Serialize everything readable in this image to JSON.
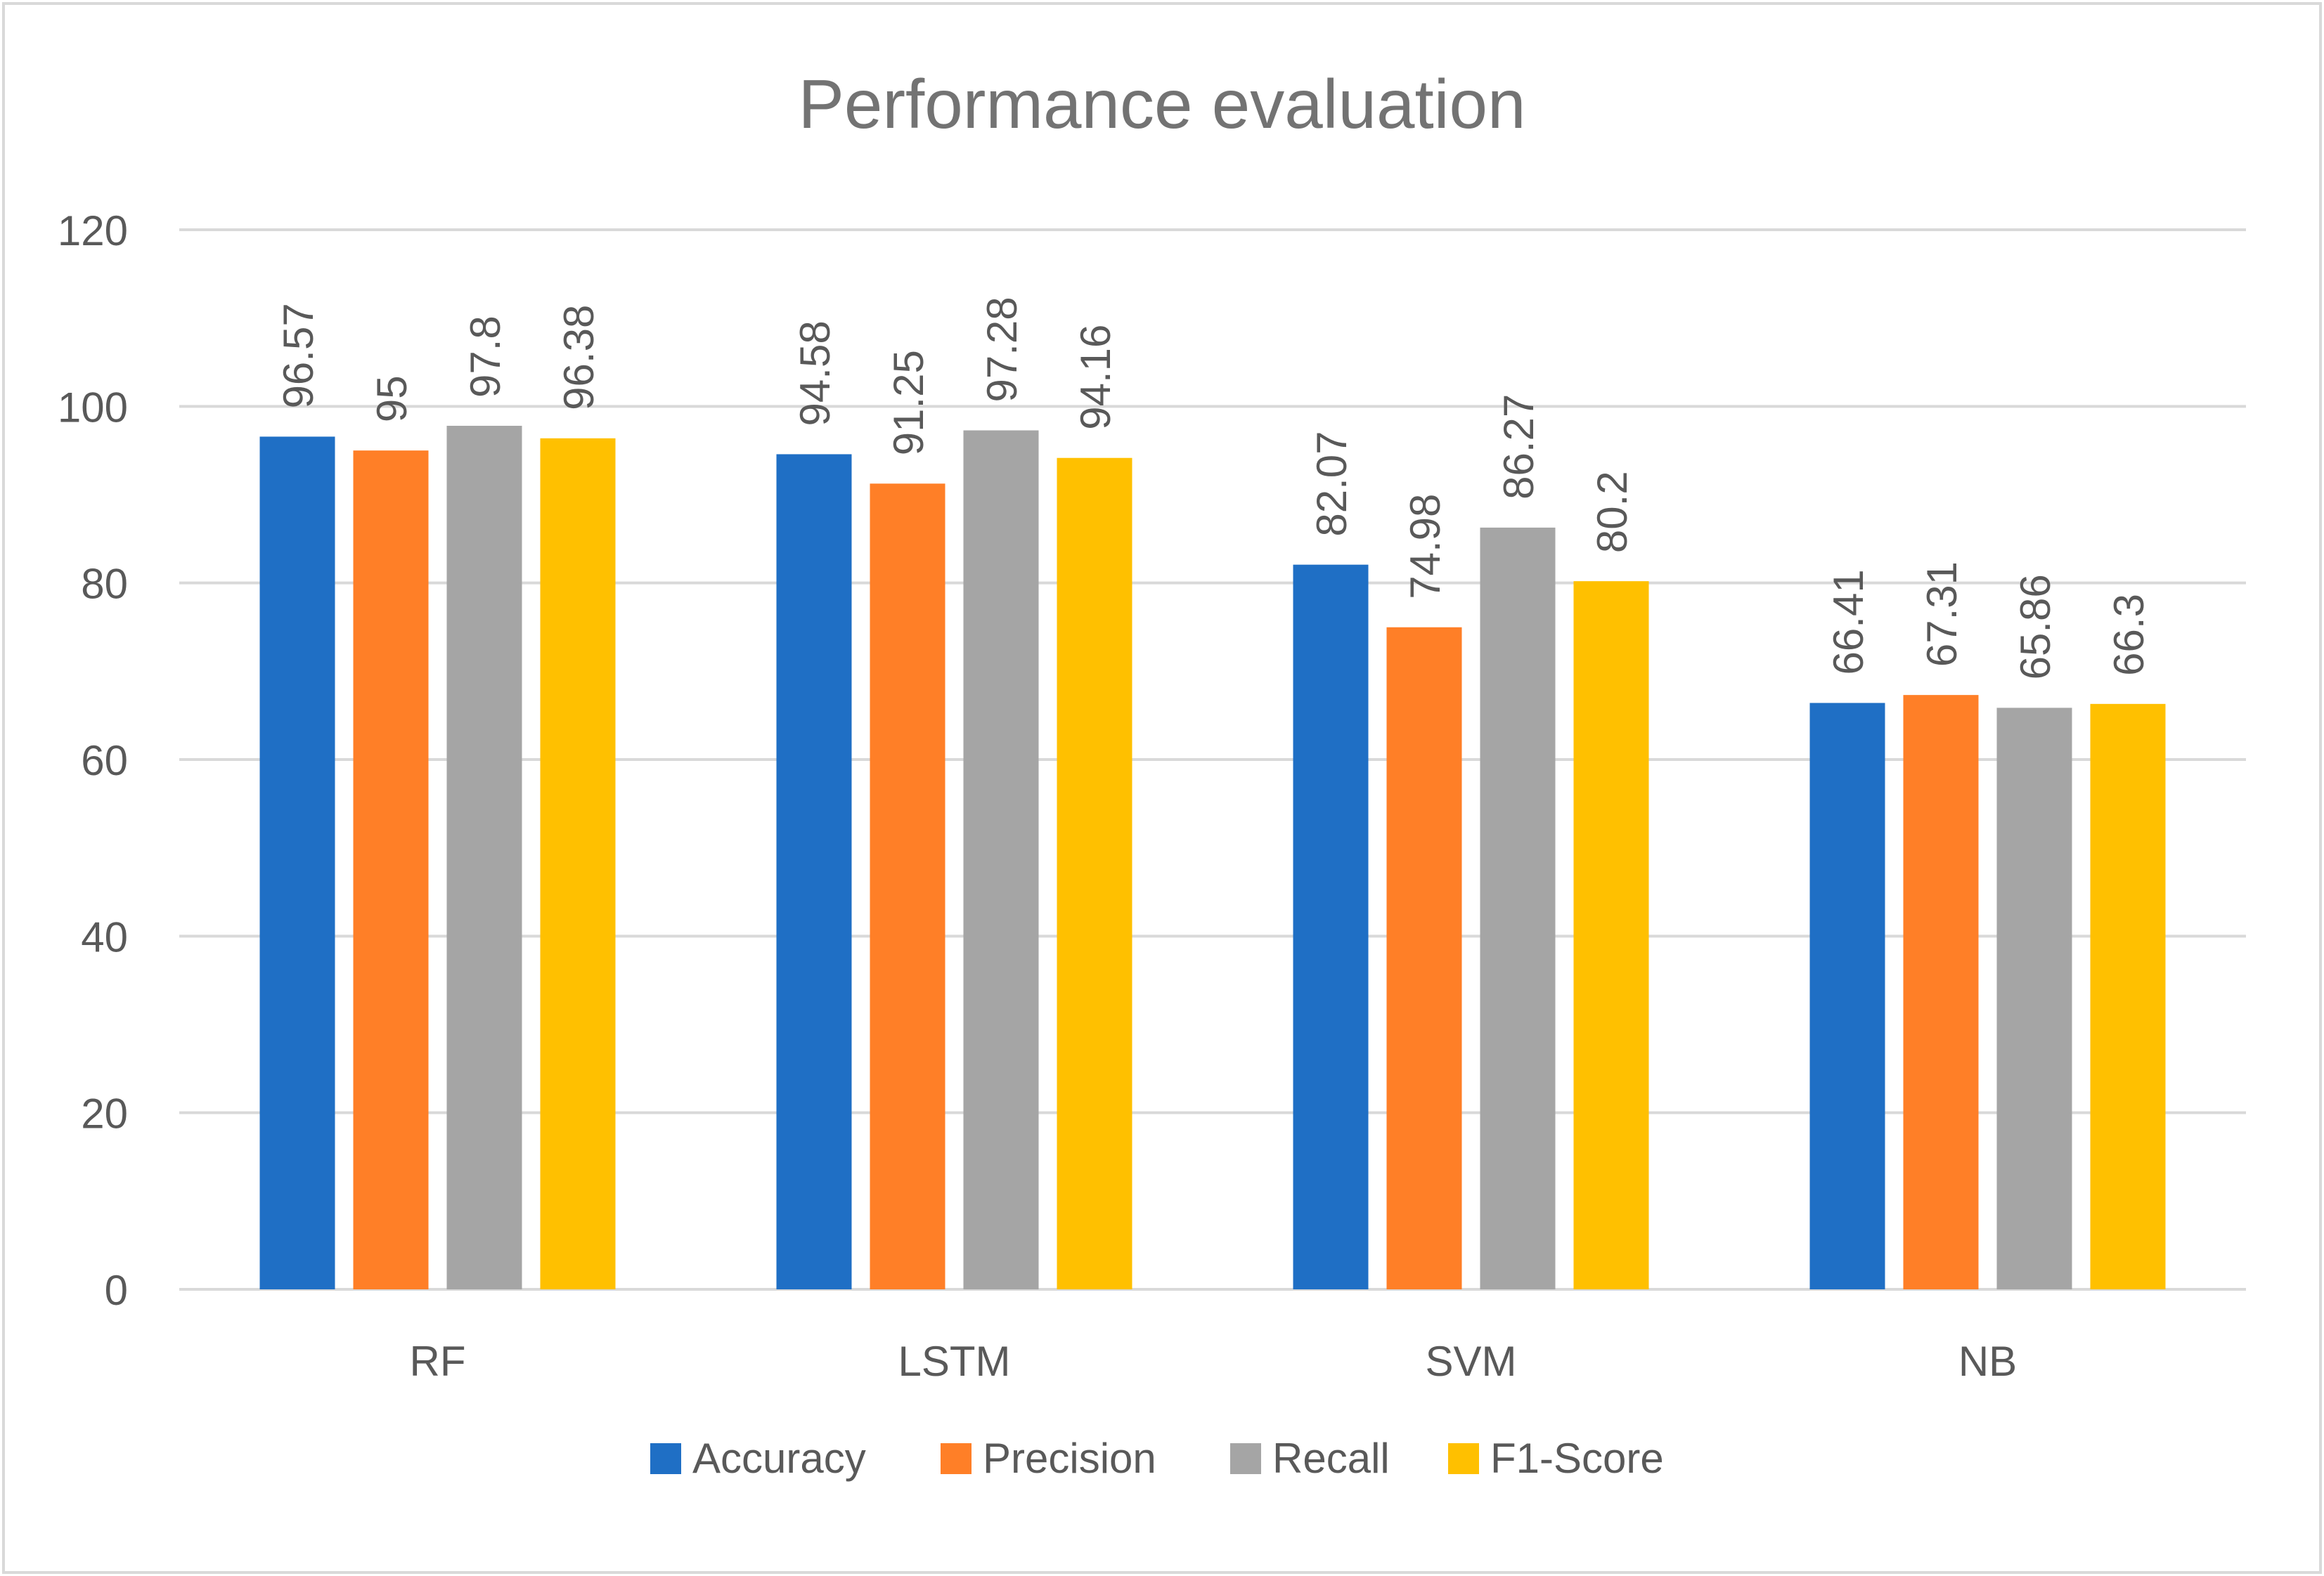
{
  "chart_data": {
    "type": "bar",
    "title": "Performance evaluation",
    "xlabel": "",
    "ylabel": "",
    "categories": [
      "RF",
      "LSTM",
      "SVM",
      "NB"
    ],
    "series": [
      {
        "name": "Accuracy",
        "color": "#1F6FC5",
        "values": [
          96.57,
          94.58,
          82.07,
          66.41
        ],
        "labels": [
          "96.57",
          "94.58",
          "82.07",
          "66.41"
        ]
      },
      {
        "name": "Precision",
        "color": "#FF7F27",
        "values": [
          95,
          91.25,
          74.98,
          67.31
        ],
        "labels": [
          "95",
          "91.25",
          "74.98",
          "67.31"
        ]
      },
      {
        "name": "Recall",
        "color": "#A5A5A5",
        "values": [
          97.8,
          97.28,
          86.27,
          65.86
        ],
        "labels": [
          "97.8",
          "97.28",
          "86.27",
          "65.86"
        ]
      },
      {
        "name": "F1-Score",
        "color": "#FFC000",
        "values": [
          96.38,
          94.16,
          80.2,
          66.3
        ],
        "labels": [
          "96.38",
          "94.16",
          "80.2",
          "66.3"
        ]
      }
    ],
    "ylim": [
      0,
      120
    ],
    "yticks": [
      "0",
      "20",
      "40",
      "60",
      "80",
      "100",
      "120"
    ],
    "grid": true,
    "legend": "bottom"
  }
}
